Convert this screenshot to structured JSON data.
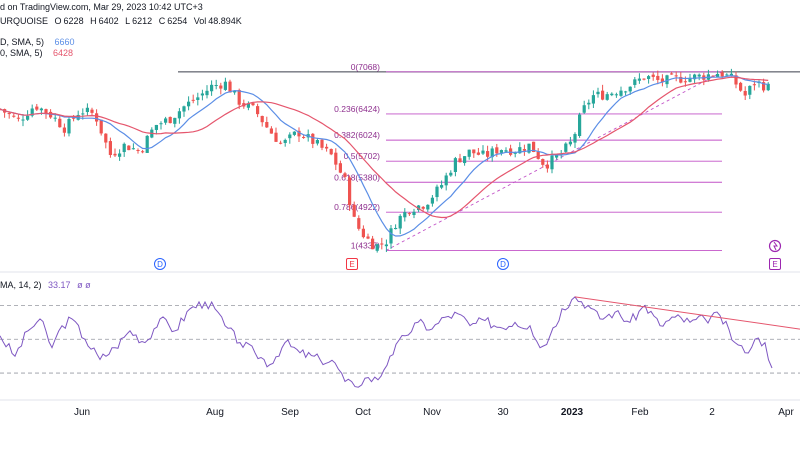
{
  "header": {
    "published": "d on TradingView.com, Mar 29, 2023 10:42 UTC+3",
    "symbol": "URQUOISE",
    "ohlc": [
      {
        "k": "O",
        "v": "6228"
      },
      {
        "k": "H",
        "v": "6402"
      },
      {
        "k": "L",
        "v": "6212"
      },
      {
        "k": "C",
        "v": "6254"
      },
      {
        "k": "Vol",
        "v": "48.894K"
      }
    ],
    "ma1_label": "D, SMA, 5)",
    "ma1_value": "6660",
    "ma2_label": "0, SMA, 5)",
    "ma2_value": "6428",
    "rsi_label": "MA, 14, 2)",
    "rsi_value": "33.17",
    "rsi_extra": "ø ø"
  },
  "colors": {
    "bull": "#26a69a",
    "bear": "#ef5350",
    "ma_fast": "#5b8ee6",
    "ma_slow": "#e5566d",
    "fib": "#c252c7",
    "fib_label": "#8e2f8e",
    "rsi": "#7e57c2",
    "trend": "#e5566d",
    "grid_dash": "#9598a1",
    "axis_text": "#131722",
    "event_blue": "#2962ff",
    "event_red": "#f23645",
    "event_purple": "#9c27b0"
  },
  "chart_data": [
    {
      "type": "candlestick",
      "title": "",
      "x_ticks": [
        "Jun",
        "Aug",
        "Sep",
        "Oct",
        "Nov",
        "30",
        "2023",
        "Feb",
        "2",
        "Apr"
      ],
      "ylim": [
        4240,
        7170
      ],
      "overlays": [
        {
          "name": "SMA",
          "value": "6660"
        },
        {
          "name": "SMA",
          "value": "6428"
        }
      ],
      "fibonacci": [
        {
          "label": "0(7068)",
          "level": 7068
        },
        {
          "label": "0.236(6424)",
          "level": 6424
        },
        {
          "label": "0.382(6024)",
          "level": 6024
        },
        {
          "label": "0.5(5702)",
          "level": 5702
        },
        {
          "label": "0.618(5380)",
          "level": 5380
        },
        {
          "label": "0.786(4922)",
          "level": 4922
        },
        {
          "label": "1(4337)",
          "level": 4337
        }
      ],
      "horizontal_line": 7068,
      "event_markers": [
        "D",
        "E",
        "D",
        "E"
      ],
      "close_path": [
        [
          0,
          6500
        ],
        [
          18,
          6320
        ],
        [
          35,
          6560
        ],
        [
          52,
          6400
        ],
        [
          65,
          6200
        ],
        [
          80,
          6480
        ],
        [
          95,
          6420
        ],
        [
          110,
          5800
        ],
        [
          125,
          5950
        ],
        [
          140,
          5850
        ],
        [
          155,
          6250
        ],
        [
          170,
          6350
        ],
        [
          185,
          6550
        ],
        [
          200,
          6700
        ],
        [
          212,
          6850
        ],
        [
          225,
          6900
        ],
        [
          240,
          6600
        ],
        [
          255,
          6480
        ],
        [
          268,
          6200
        ],
        [
          282,
          5950
        ],
        [
          298,
          6150
        ],
        [
          315,
          5980
        ],
        [
          332,
          5780
        ],
        [
          345,
          5400
        ],
        [
          355,
          4750
        ],
        [
          365,
          4550
        ],
        [
          375,
          4400
        ],
        [
          386,
          4470
        ],
        [
          397,
          4800
        ],
        [
          410,
          4980
        ],
        [
          425,
          5050
        ],
        [
          440,
          5300
        ],
        [
          455,
          5700
        ],
        [
          470,
          5850
        ],
        [
          485,
          5780
        ],
        [
          500,
          5900
        ],
        [
          515,
          5870
        ],
        [
          530,
          5950
        ],
        [
          545,
          5640
        ],
        [
          560,
          5800
        ],
        [
          572,
          6000
        ],
        [
          582,
          6450
        ],
        [
          592,
          6700
        ],
        [
          605,
          6720
        ],
        [
          620,
          6800
        ],
        [
          635,
          6900
        ],
        [
          645,
          7000
        ],
        [
          660,
          6920
        ],
        [
          675,
          6960
        ],
        [
          690,
          6980
        ],
        [
          705,
          7010
        ],
        [
          720,
          7060
        ],
        [
          733,
          6950
        ],
        [
          745,
          6700
        ],
        [
          755,
          6920
        ],
        [
          765,
          6850
        ],
        [
          772,
          6800
        ]
      ]
    },
    {
      "type": "line",
      "title": "",
      "series_name": "RSI",
      "value": "33.17",
      "ylim": [
        20,
        85
      ],
      "levels": [
        70,
        50,
        30
      ],
      "path": [
        [
          0,
          52
        ],
        [
          15,
          40
        ],
        [
          28,
          55
        ],
        [
          40,
          62
        ],
        [
          52,
          45
        ],
        [
          62,
          58
        ],
        [
          72,
          62
        ],
        [
          85,
          50
        ],
        [
          100,
          38
        ],
        [
          115,
          45
        ],
        [
          130,
          55
        ],
        [
          145,
          48
        ],
        [
          160,
          62
        ],
        [
          175,
          55
        ],
        [
          190,
          68
        ],
        [
          205,
          72
        ],
        [
          215,
          68
        ],
        [
          225,
          58
        ],
        [
          240,
          48
        ],
        [
          255,
          42
        ],
        [
          270,
          35
        ],
        [
          285,
          48
        ],
        [
          300,
          42
        ],
        [
          320,
          38
        ],
        [
          335,
          36
        ],
        [
          345,
          25
        ],
        [
          355,
          22
        ],
        [
          365,
          27
        ],
        [
          378,
          26
        ],
        [
          390,
          40
        ],
        [
          405,
          52
        ],
        [
          418,
          60
        ],
        [
          432,
          56
        ],
        [
          445,
          63
        ],
        [
          458,
          65
        ],
        [
          470,
          58
        ],
        [
          485,
          61
        ],
        [
          500,
          57
        ],
        [
          515,
          60
        ],
        [
          530,
          58
        ],
        [
          540,
          45
        ],
        [
          550,
          52
        ],
        [
          562,
          68
        ],
        [
          575,
          75
        ],
        [
          588,
          70
        ],
        [
          600,
          62
        ],
        [
          615,
          66
        ],
        [
          630,
          60
        ],
        [
          645,
          70
        ],
        [
          660,
          58
        ],
        [
          675,
          63
        ],
        [
          690,
          60
        ],
        [
          705,
          62
        ],
        [
          720,
          64
        ],
        [
          735,
          48
        ],
        [
          745,
          42
        ],
        [
          755,
          50
        ],
        [
          765,
          48
        ],
        [
          772,
          33
        ]
      ]
    }
  ]
}
